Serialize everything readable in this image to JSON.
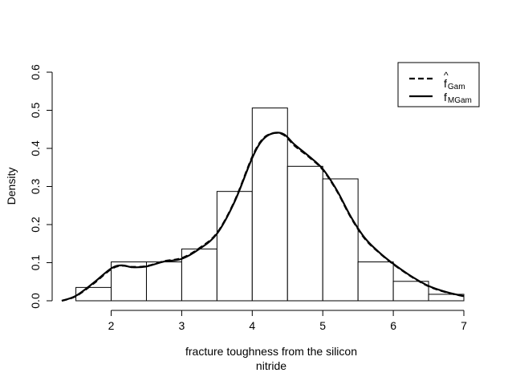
{
  "chart_data": {
    "type": "histogram",
    "title": "",
    "xlabel_lines": [
      "fracture toughness from the silicon",
      "nitride"
    ],
    "ylabel": "Density",
    "xlim": [
      1.3,
      7.0
    ],
    "ylim": [
      0,
      0.6
    ],
    "x_ticks": [
      2,
      3,
      4,
      5,
      6,
      7
    ],
    "y_ticks": [
      0.0,
      0.1,
      0.2,
      0.3,
      0.4,
      0.5,
      0.6
    ],
    "y_tick_labels": [
      "0.0",
      "0.1",
      "0.2",
      "0.3",
      "0.4",
      "0.5",
      "0.6"
    ],
    "grid": false,
    "bins": [
      {
        "x0": 1.5,
        "x1": 2.0,
        "density": 0.035
      },
      {
        "x0": 2.0,
        "x1": 2.5,
        "density": 0.102
      },
      {
        "x0": 2.5,
        "x1": 3.0,
        "density": 0.102
      },
      {
        "x0": 3.0,
        "x1": 3.5,
        "density": 0.136
      },
      {
        "x0": 3.5,
        "x1": 4.0,
        "density": 0.287
      },
      {
        "x0": 4.0,
        "x1": 4.5,
        "density": 0.506
      },
      {
        "x0": 4.5,
        "x1": 5.0,
        "density": 0.353
      },
      {
        "x0": 5.0,
        "x1": 5.5,
        "density": 0.32
      },
      {
        "x0": 5.5,
        "x1": 6.0,
        "density": 0.102
      },
      {
        "x0": 6.0,
        "x1": 6.5,
        "density": 0.051
      },
      {
        "x0": 6.5,
        "x1": 7.0,
        "density": 0.017
      }
    ],
    "series": [
      {
        "name": "f̂ Gam",
        "style": "dashed",
        "x": [
          1.3,
          1.5,
          1.75,
          2.0,
          2.15,
          2.3,
          2.5,
          2.75,
          3.0,
          3.25,
          3.5,
          3.75,
          4.0,
          4.15,
          4.3,
          4.45,
          4.6,
          4.8,
          5.0,
          5.2,
          5.4,
          5.6,
          5.8,
          6.0,
          6.25,
          6.5,
          6.75,
          7.0
        ],
        "y": [
          0.0,
          0.012,
          0.045,
          0.083,
          0.092,
          0.089,
          0.091,
          0.104,
          0.112,
          0.138,
          0.178,
          0.262,
          0.378,
          0.425,
          0.44,
          0.435,
          0.407,
          0.378,
          0.344,
          0.288,
          0.218,
          0.162,
          0.126,
          0.096,
          0.064,
          0.038,
          0.022,
          0.012
        ]
      },
      {
        "name": "f MGam",
        "style": "solid",
        "x": [
          1.3,
          1.5,
          1.75,
          2.0,
          2.15,
          2.3,
          2.5,
          2.75,
          3.0,
          3.25,
          3.5,
          3.75,
          4.0,
          4.15,
          4.3,
          4.45,
          4.6,
          4.8,
          5.0,
          5.2,
          5.4,
          5.6,
          5.8,
          6.0,
          6.25,
          6.5,
          6.75,
          7.0
        ],
        "y": [
          0.0,
          0.013,
          0.047,
          0.085,
          0.093,
          0.088,
          0.09,
          0.103,
          0.11,
          0.136,
          0.176,
          0.26,
          0.375,
          0.423,
          0.44,
          0.437,
          0.41,
          0.38,
          0.346,
          0.29,
          0.22,
          0.164,
          0.127,
          0.097,
          0.065,
          0.039,
          0.023,
          0.012
        ]
      }
    ],
    "legend": {
      "placement": "top-right",
      "entries": [
        {
          "label_main": "f",
          "label_sub": "Gam",
          "hat": "^",
          "line": "dashed"
        },
        {
          "label_main": "f",
          "label_sub": "MGam",
          "hat": "",
          "line": "solid"
        }
      ]
    }
  }
}
